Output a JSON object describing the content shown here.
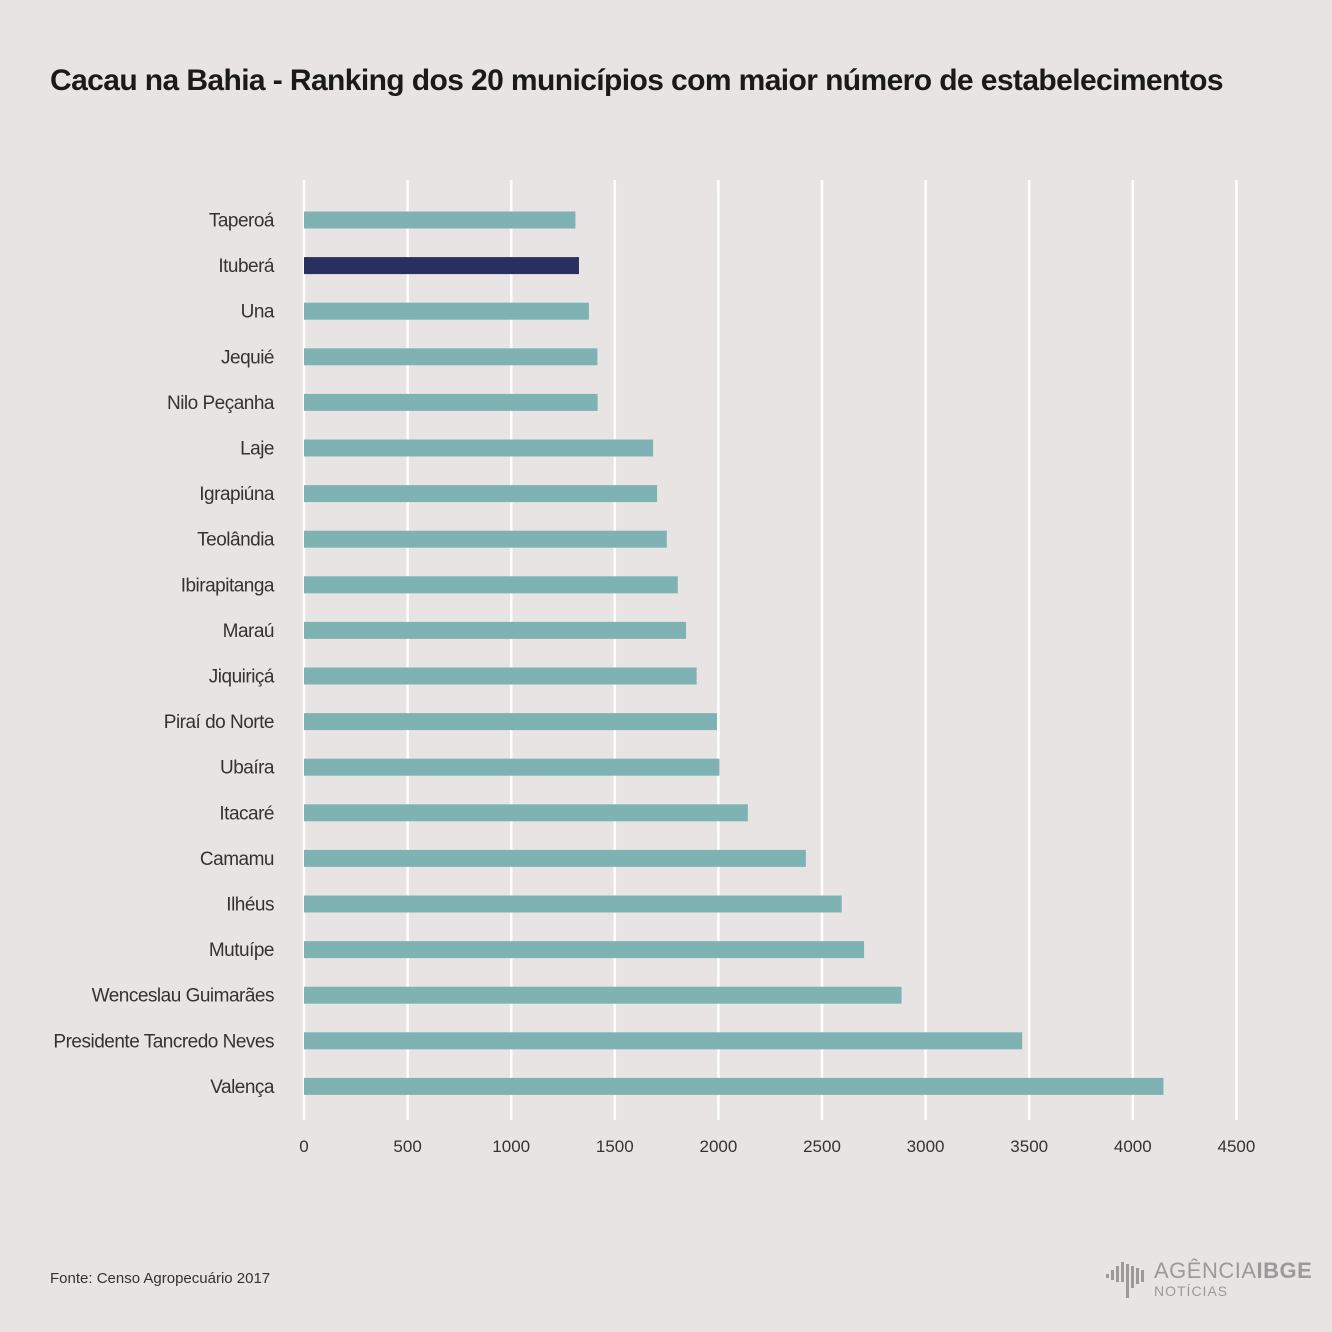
{
  "title": "Cacau na Bahia - Ranking dos 20 municípios com maior número de estabelecimentos",
  "source": "Fonte: Censo Agropecuário 2017",
  "logo": {
    "name_part1": "AGÊNCIA",
    "name_part2": "IBGE",
    "subtitle": "NOTÍCIAS"
  },
  "colors": {
    "bar": "#7fb3b3",
    "highlight": "#27305f",
    "grid": "#ffffff",
    "background": "#e9e4e4"
  },
  "chart_data": {
    "type": "bar",
    "orientation": "horizontal",
    "title": "Cacau na Bahia - Ranking dos 20 municípios com maior número de estabelecimentos",
    "xlabel": "",
    "ylabel": "",
    "xlim": [
      0,
      4500
    ],
    "xticks": [
      0,
      500,
      1000,
      1500,
      2000,
      2500,
      3000,
      3500,
      4000,
      4500
    ],
    "grid": "vertical",
    "legend": "none",
    "highlight_category": "Ituberá",
    "categories": [
      "Taperoá",
      "Ituberá",
      "Una",
      "Jequié",
      "Nilo Peçanha",
      "Laje",
      "Igrapiúna",
      "Teolândia",
      "Ibirapitanga",
      "Maraú",
      "Jiquiriçá",
      "Piraí do Norte",
      "Ubaíra",
      "Itacaré",
      "Camamu",
      "Ilhéus",
      "Mutuípe",
      "Wenceslau Guimarães",
      "Presidente Tancredo Neves",
      "Valença"
    ],
    "values": [
      1310,
      1327,
      1375,
      1416,
      1417,
      1685,
      1704,
      1751,
      1804,
      1844,
      1895,
      1993,
      2005,
      2142,
      2422,
      2595,
      2703,
      2884,
      3466,
      4148
    ]
  }
}
